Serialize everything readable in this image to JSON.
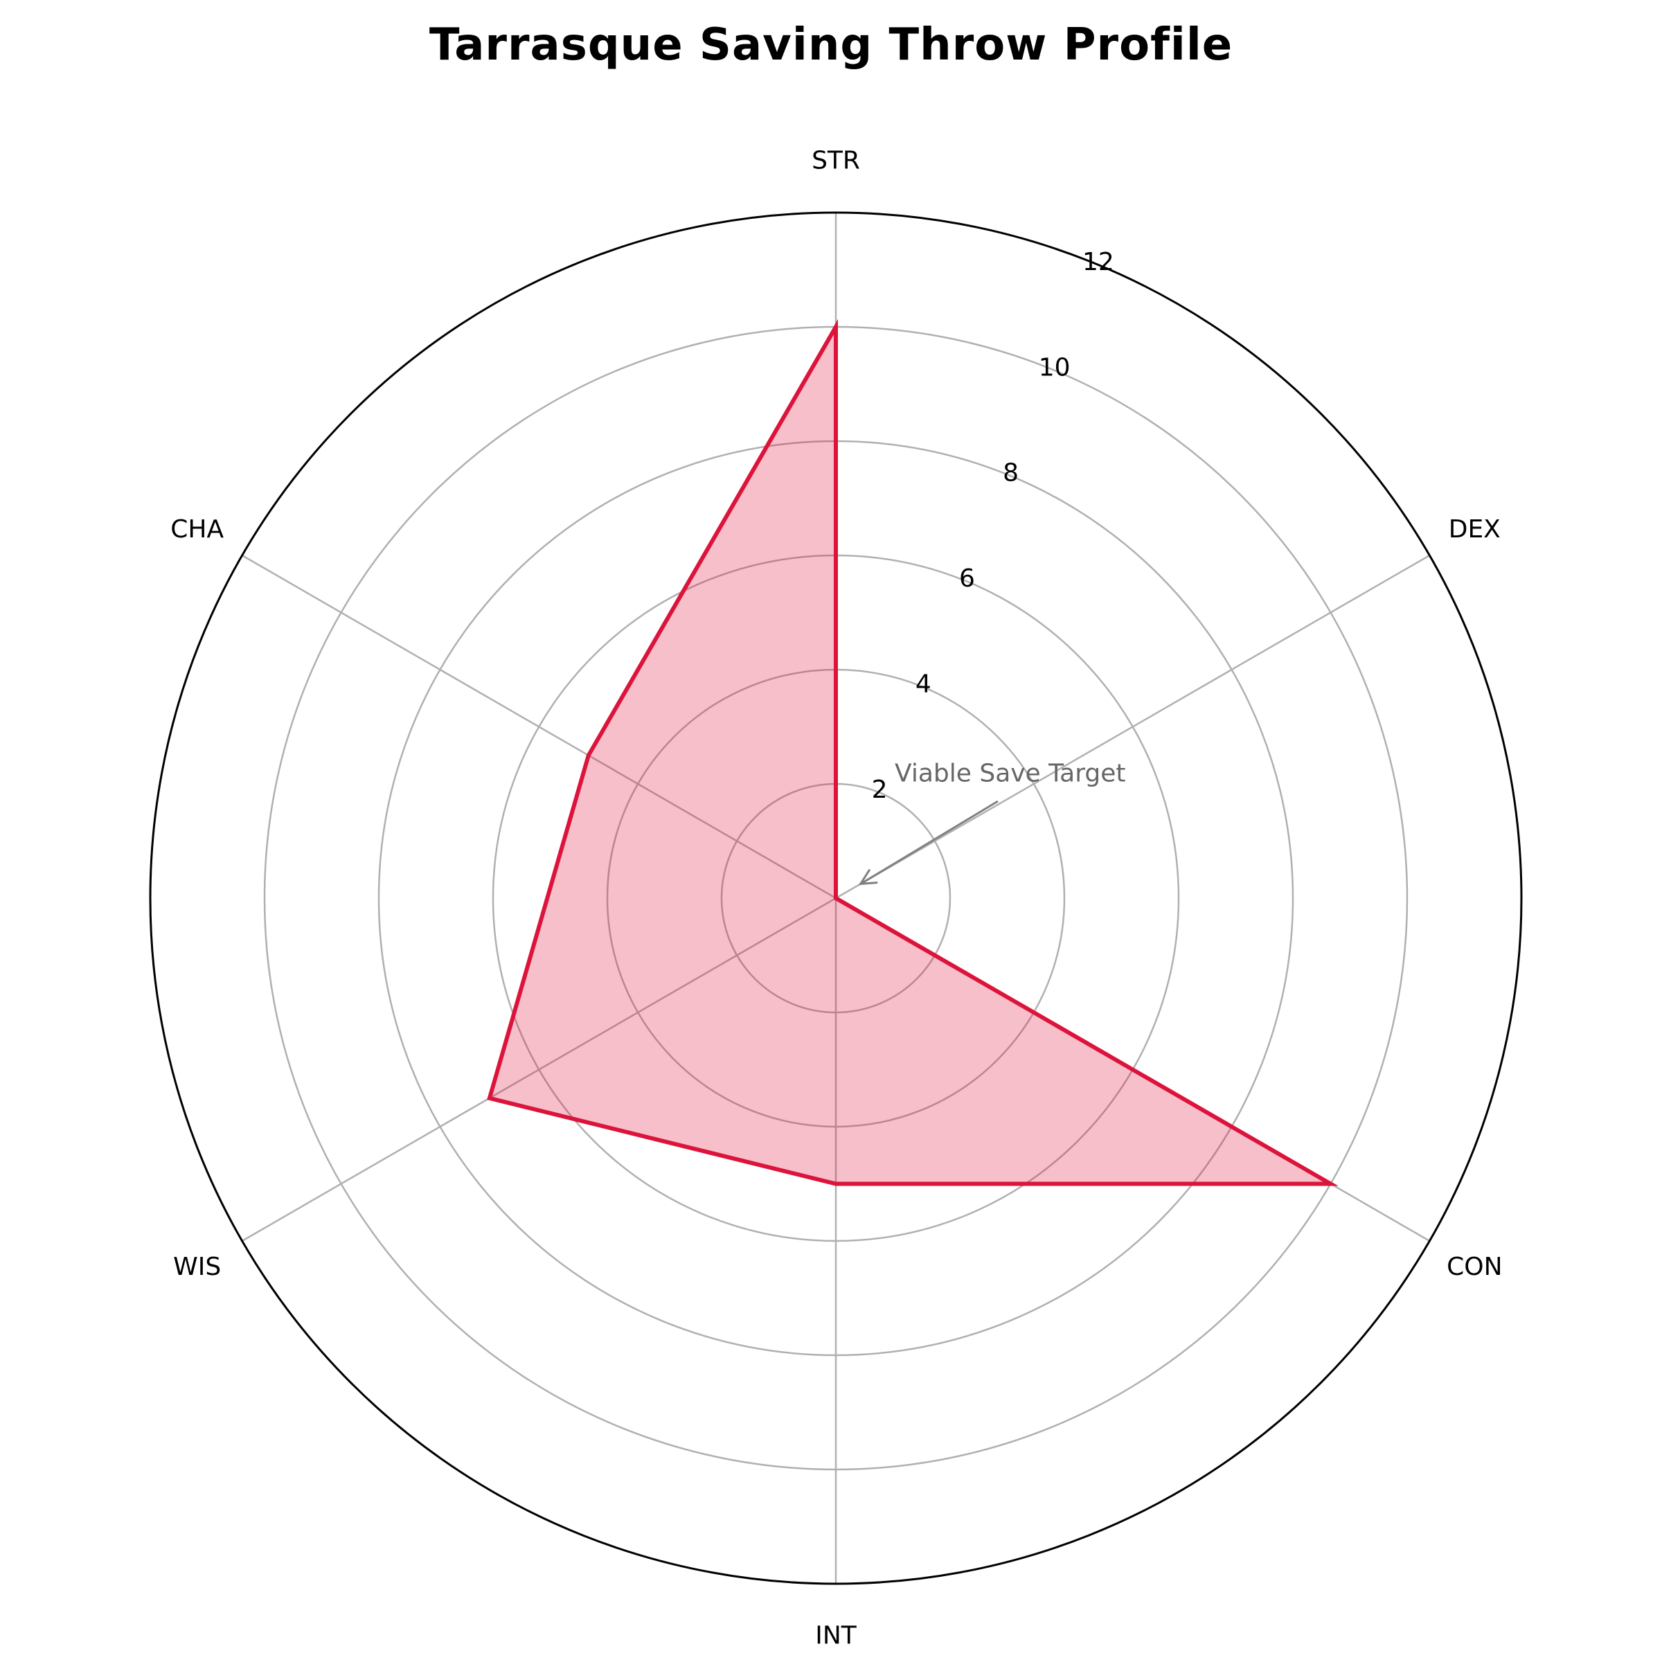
{
  "chart_data": {
    "type": "radar",
    "title": "Tarrasque Saving Throw Profile",
    "categories": [
      "STR",
      "DEX",
      "CON",
      "INT",
      "WIS",
      "CHA"
    ],
    "series": [
      {
        "values": [
          10,
          0,
          10,
          5,
          7,
          5
        ],
        "color": "#dc143c",
        "fill_color": "#dc143c",
        "fill_opacity": 0.27
      }
    ],
    "rlim": [
      0,
      12
    ],
    "r_ticks": [
      2,
      4,
      6,
      8,
      10,
      12
    ],
    "r_tick_labels": [
      "2",
      "4",
      "6",
      "8",
      "10",
      "12"
    ],
    "grid": true,
    "grid_color": "#b0b0b0",
    "annotation": {
      "text": "Viable Save Target",
      "category": "DEX",
      "value": 0.5,
      "color": "#666666",
      "arrow_color": "#808080"
    }
  }
}
